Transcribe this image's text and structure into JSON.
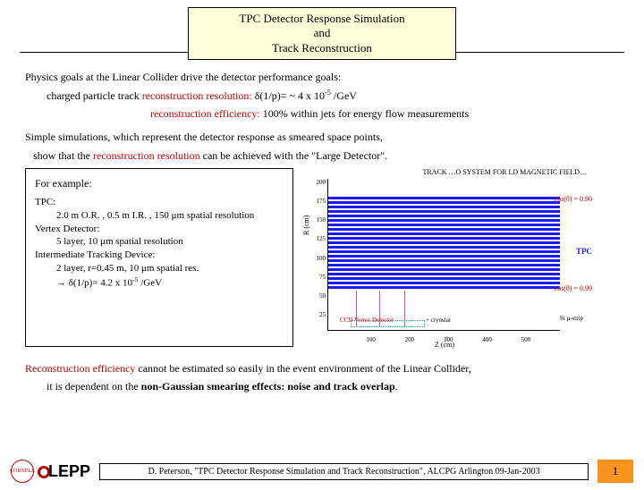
{
  "title": {
    "line1": "TPC Detector Response Simulation",
    "line2": "and",
    "line3": "Track Reconstruction"
  },
  "para1": {
    "l1": "Physics goals at the Linear Collider drive the detector performance goals:",
    "l2a": "charged particle track ",
    "l2b": "reconstruction resolution:",
    "l2c": "  δ(1/p)= ~ 4 x 10",
    "l2d": " /GeV",
    "l2exp": "-5",
    "l3a": "reconstruction efficiency:",
    "l3b": "  100% within jets for energy flow measurements"
  },
  "para2": {
    "l1": "Simple simulations, which represent the detector response as smeared space points,",
    "l2a": "show that the ",
    "l2b": "reconstruction resolution",
    "l2c": " can be achieved with the \"Large Detector\"."
  },
  "example": {
    "hdr": "For example:",
    "l1": "TPC:",
    "l2": "2.0 m O.R. , 0.5 m I.R. , 150 μm spatial resolution",
    "l3": "Vertex Detector:",
    "l4": "5 layer, 10 μm spatial resolution",
    "l5": "Intermediate Tracking Device:",
    "l6": "2 layer, r=0.45 m, 10 μm spatial res.",
    "l7a": "→ δ(1/p)= 4.2 x 10",
    "l7exp": "-5",
    "l7b": " /GeV"
  },
  "chart": {
    "title": "TRACK …O SYSTEM FOR LD MAGNETIC FIELD…",
    "ylabel": "R (cm)",
    "xlabel": "Z (cm)",
    "tpc_label": "TPC",
    "cos1": "cos(θ) = 0.90",
    "cos2": "cos(θ) = 0.99",
    "ccd": "CCD Vertex Detector",
    "mustrip": "Si μ-strip",
    "cryo": "+ cryostat",
    "yticks": [
      "200",
      "175",
      "150",
      "125",
      "100",
      "75",
      "50",
      "25"
    ],
    "xticks": [
      "100",
      "200",
      "300",
      "400",
      "500"
    ],
    "blue_top_pct": 12,
    "blue_height_pct": 62,
    "vlines_pct": [
      12,
      22,
      33
    ],
    "band_w_pct": 32
  },
  "para3": {
    "l1a": "Reconstruction efficiency",
    "l1b": " cannot be estimated so easily in the event environment of the Linear Collider,",
    "l2a": "it is dependent on the ",
    "l2b": "non-Gaussian smearing effects: noise and track overlap",
    "l2c": "."
  },
  "footer": {
    "lepp": "LEPP",
    "cornell": "CORNELL",
    "text": "D. Peterson, \"TPC Detector Response Simulation and Track Reconstruction\", ALCPG Arlington 09-Jan-2003",
    "page": "1"
  },
  "colors": {
    "bg_title": "#ffffd9",
    "red": "#c00000",
    "blue": "#0000cc",
    "orange": "#f7941d",
    "chartblue": "#1a1aee"
  }
}
